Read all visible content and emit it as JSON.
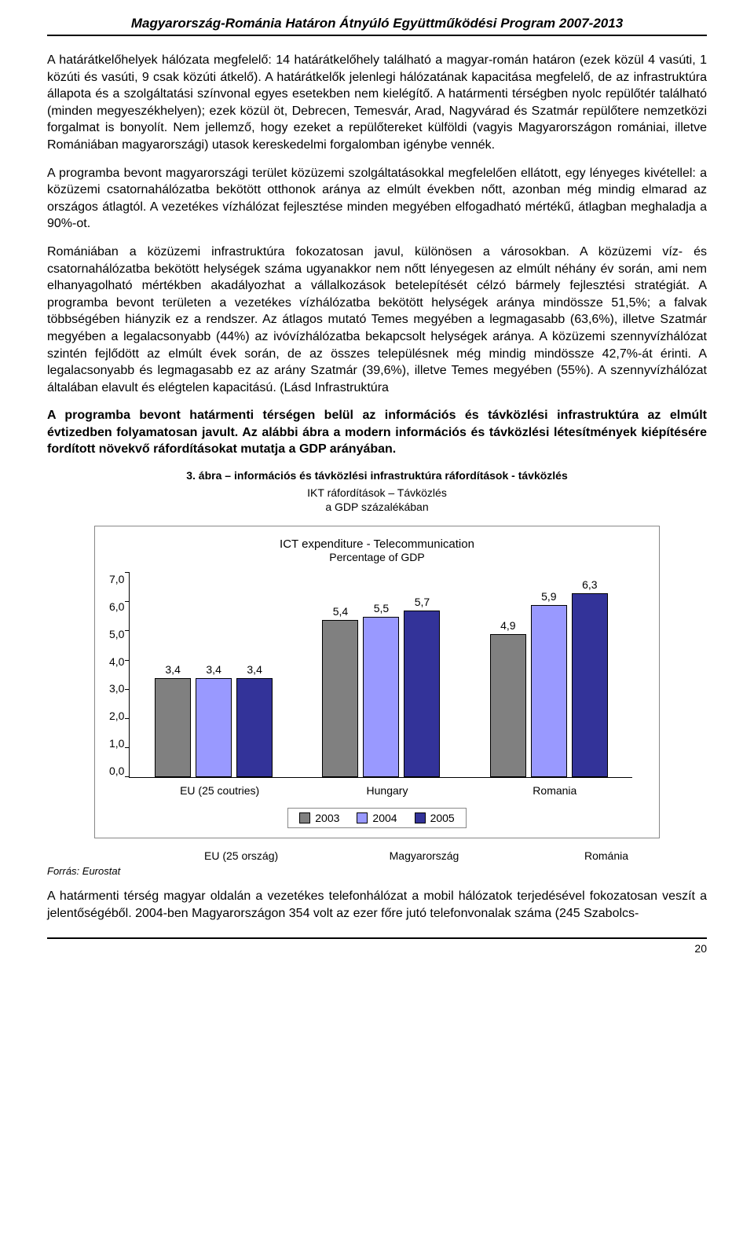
{
  "header": "Magyarország-Románia Határon Átnyúló Együttműködési Program 2007-2013",
  "p1": "A határátkelőhelyek hálózata megfelelő: 14 határátkelőhely található a magyar-román határon (ezek közül 4 vasúti, 1 közúti és vasúti, 9 csak közúti átkelő). A határátkelők jelenlegi hálózatának kapacitása megfelelő, de az infrastruktúra állapota és a szolgáltatási színvonal egyes esetekben nem kielégítő. A határmenti térségben nyolc repülőtér található (minden megyeszékhelyen); ezek közül öt, Debrecen, Temesvár, Arad, Nagyvárad és Szatmár repülőtere nemzetközi forgalmat is bonyolít. Nem jellemző, hogy ezeket a repülőtereket külföldi (vagyis Magyarországon romániai, illetve Romániában magyarországi) utasok kereskedelmi forgalomban igénybe vennék.",
  "p2": "A programba bevont magyarországi terület közüzemi szolgáltatásokkal megfelelően ellátott, egy lényeges kivétellel: a közüzemi csatornahálózatba bekötött otthonok aránya az elmúlt években nőtt, azonban még mindig elmarad az országos átlagtól. A vezetékes vízhálózat fejlesztése minden megyében elfogadható mértékű, átlagban meghaladja a 90%-ot.",
  "p3": "Romániában a közüzemi infrastruktúra fokozatosan javul, különösen a városokban. A közüzemi víz- és csatornahálózatba bekötött helységek száma ugyanakkor nem nőtt lényegesen az elmúlt néhány év során, ami nem elhanyagolható mértékben akadályozhat a vállalkozások betelepítését célzó bármely fejlesztési stratégiát. A programba bevont területen a vezetékes vízhálózatba bekötött helységek aránya mindössze 51,5%; a falvak többségében hiányzik ez a rendszer. Az átlagos mutató Temes megyében a legmagasabb (63,6%), illetve Szatmár megyében a legalacsonyabb (44%) az ivóvízhálózatba bekapcsolt helységek aránya. A közüzemi szennyvízhálózat szintén fejlődött az elmúlt évek során, de az összes településnek még mindig mindössze 42,7%-át érinti. A legalacsonyabb és legmagasabb ez az arány Szatmár (39,6%), illetve Temes megyében (55%). A szennyvízhálózat általában elavult és elégtelen kapacitású. (Lásd Infrastruktúra",
  "p4": "A programba bevont határmenti térségen belül az információs és távközlési infrastruktúra az elmúlt évtizedben folyamatosan javult. Az alábbi ábra a modern információs és távközlési létesítmények kiépítésére fordított növekvő ráfordításokat mutatja a GDP arányában.",
  "fig_caption": "3. ábra – információs és távközlési infrastruktúra ráfordítások - távközlés",
  "sub1": "IKT ráfordítások – Távközlés",
  "sub2": "a GDP százalékában",
  "chart": {
    "title": "ICT expenditure - Telecommunication",
    "subtitle": "Percentage of GDP",
    "ymax": 7.0,
    "ytick_step": 1.0,
    "yticks": [
      "7,0",
      "6,0",
      "5,0",
      "4,0",
      "3,0",
      "2,0",
      "1,0",
      "0,0"
    ],
    "categories": [
      "EU (25 coutries)",
      "Hungary",
      "Romania"
    ],
    "series": [
      {
        "name": "2003",
        "color": "#808080",
        "values": [
          3.4,
          5.4,
          4.9
        ],
        "labels": [
          "3,4",
          "5,4",
          "4,9"
        ]
      },
      {
        "name": "2004",
        "color": "#9999ff",
        "values": [
          3.4,
          5.5,
          5.9
        ],
        "labels": [
          "3,4",
          "5,5",
          "5,9"
        ]
      },
      {
        "name": "2005",
        "color": "#333399",
        "values": [
          3.4,
          5.7,
          6.3
        ],
        "labels": [
          "3,4",
          "5,7",
          "6,3"
        ]
      }
    ],
    "bottom_labels": [
      "EU (25 ország)",
      "Magyarország",
      "Románia"
    ]
  },
  "source": "Forrás: Eurostat",
  "p5": "A határmenti térség magyar oldalán a vezetékes telefonhálózat a mobil hálózatok terjedésével fokozatosan veszít a jelentőségéből. 2004-ben Magyarországon 354 volt az ezer főre jutó telefonvonalak száma (245 Szabolcs-",
  "page_num": "20"
}
